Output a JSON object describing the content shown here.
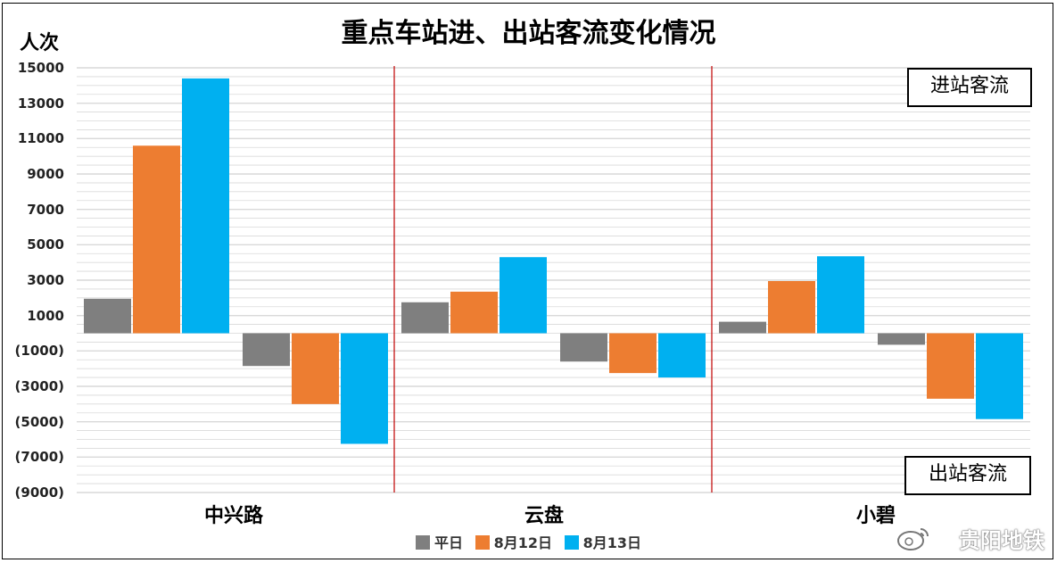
{
  "title": "重点车站进、出站客流变化情况",
  "unit_label": "人次",
  "inbound_box_label": "进站客流",
  "outbound_box_label": "出站客流",
  "watermark": "贵阳地铁",
  "colors": {
    "平日": "#7f7f7f",
    "8月12日": "#ed7d31",
    "8月13日": "#00b0f0",
    "divider": "#c00000",
    "grid": "#d9d9d9"
  },
  "chart_data": {
    "type": "bar",
    "title": "重点车站进、出站客流变化情况",
    "ylabel": "人次",
    "ylim": [
      -9000,
      15000
    ],
    "grid": true,
    "legend_position": "bottom",
    "y_ticks": [
      "15000",
      "13000",
      "11000",
      "9000",
      "7000",
      "5000",
      "3000",
      "1000",
      "(1000)",
      "(3000)",
      "(5000)",
      "(7000)",
      "(9000)"
    ],
    "categories": [
      "中兴路",
      "云盘",
      "小碧"
    ],
    "groups": [
      "进站客流",
      "出站客流"
    ],
    "series": [
      {
        "name": "平日",
        "inbound": [
          1950,
          1750,
          650
        ],
        "outbound": [
          -1850,
          -1600,
          -650
        ]
      },
      {
        "name": "8月12日",
        "inbound": [
          10600,
          2350,
          2950
        ],
        "outbound": [
          -4000,
          -2250,
          -3700
        ]
      },
      {
        "name": "8月13日",
        "inbound": [
          14400,
          4300,
          4350
        ],
        "outbound": [
          -6250,
          -2500,
          -4850
        ]
      }
    ]
  }
}
